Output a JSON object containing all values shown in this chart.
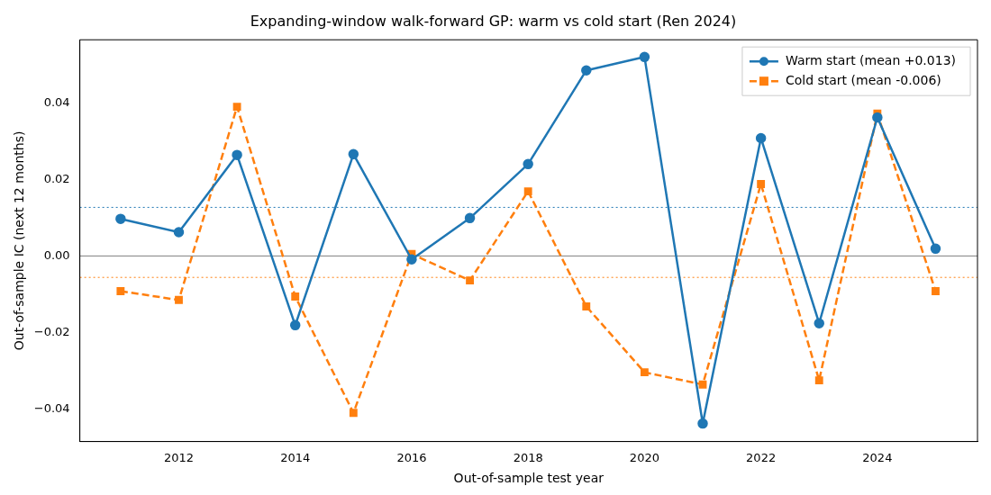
{
  "chart_data": {
    "type": "line",
    "title": "Expanding-window walk-forward GP: warm vs cold start (Ren 2024)",
    "xlabel": "Out-of-sample test year",
    "ylabel": "Out-of-sample IC (next 12 months)",
    "x": [
      2011,
      2012,
      2013,
      2014,
      2015,
      2016,
      2017,
      2018,
      2019,
      2020,
      2021,
      2022,
      2023,
      2024,
      2025
    ],
    "series": [
      {
        "name": "Warm start (mean +0.013)",
        "color": "#1f77b4",
        "marker": "circle",
        "line_style": "solid",
        "values": [
          0.0097,
          0.0062,
          0.0264,
          -0.0181,
          0.0266,
          -0.0009,
          0.0099,
          0.024,
          0.0485,
          0.052,
          -0.0438,
          0.0308,
          -0.0176,
          0.0362,
          0.0019
        ]
      },
      {
        "name": "Cold start (mean -0.006)",
        "color": "#ff7f0e",
        "marker": "square",
        "line_style": "dashed",
        "values": [
          -0.0092,
          -0.0115,
          0.039,
          -0.0106,
          -0.041,
          0.0005,
          -0.0064,
          0.0169,
          -0.0132,
          -0.0304,
          -0.0336,
          0.0188,
          -0.0325,
          0.0372,
          -0.0092
        ]
      }
    ],
    "ref_lines": [
      {
        "axis": "y",
        "value": 0,
        "color": "#808080",
        "line_style": "solid"
      },
      {
        "axis": "y",
        "value": 0.0127,
        "color": "#1f77b4",
        "line_style": "dotted"
      },
      {
        "axis": "y",
        "value": -0.0056,
        "color": "#ff7f0e",
        "line_style": "dotted"
      }
    ],
    "xlim": [
      2010.3,
      2025.72
    ],
    "xticks": [
      2012,
      2014,
      2016,
      2018,
      2020,
      2022,
      2024
    ],
    "ylim": [
      -0.0485,
      0.0565
    ],
    "yticks": [
      {
        "value": -0.04,
        "label": "−0.04"
      },
      {
        "value": -0.02,
        "label": "−0.02"
      },
      {
        "value": 0,
        "label": "0.00"
      },
      {
        "value": 0.02,
        "label": "0.02"
      },
      {
        "value": 0.04,
        "label": "0.04"
      }
    ],
    "grid": false,
    "legend": "top right"
  }
}
